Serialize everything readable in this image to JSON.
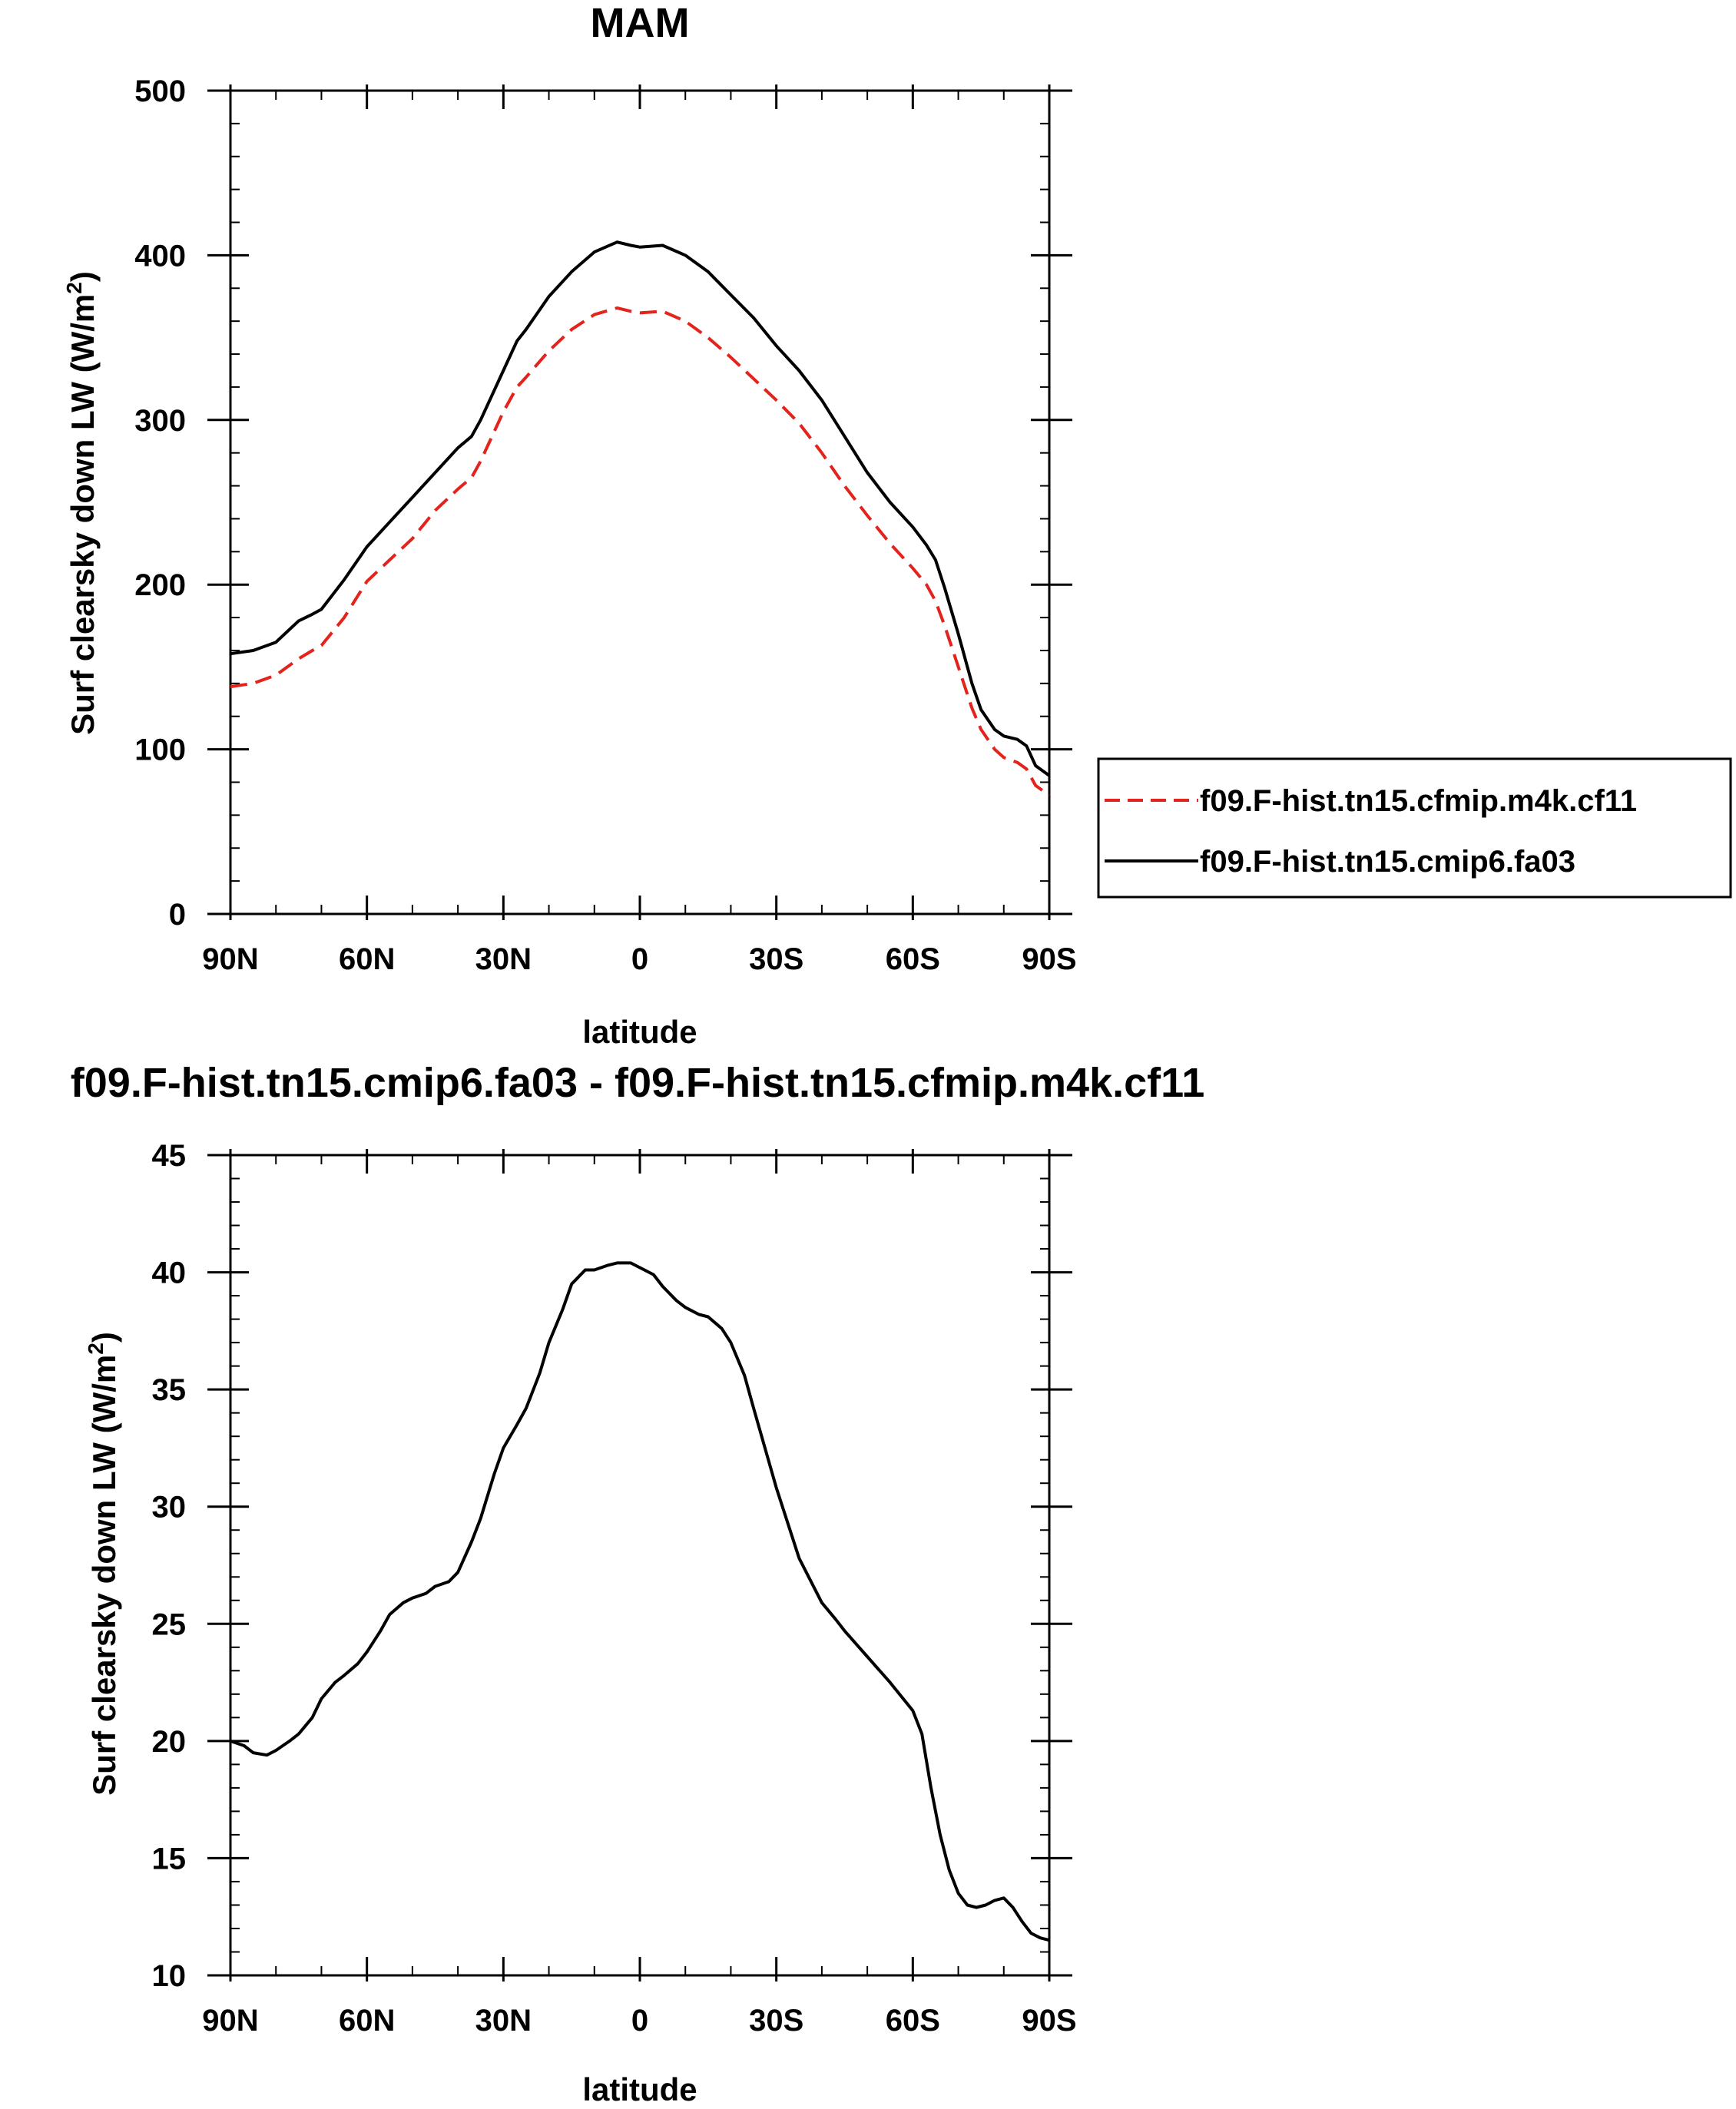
{
  "chart_data": [
    {
      "type": "line",
      "title": "MAM",
      "xlabel": "latitude",
      "ylabel_main": "Surf clearsky down LW (W/m",
      "ylabel_sup": "2",
      "ylabel_close": ")",
      "xlim": [
        90,
        -90
      ],
      "ylim": [
        0,
        500
      ],
      "x_ticks": [
        90,
        60,
        30,
        0,
        -30,
        -60,
        -90
      ],
      "x_tick_labels": [
        "90N",
        "60N",
        "30N",
        "0",
        "30S",
        "60S",
        "90S"
      ],
      "y_ticks": [
        0,
        100,
        200,
        300,
        400,
        500
      ],
      "y_tick_labels": [
        "0",
        "100",
        "200",
        "300",
        "400",
        "500"
      ],
      "legend_position": "right, outside plot",
      "x": [
        90,
        85,
        80,
        75,
        72,
        70,
        65,
        60,
        55,
        50,
        45,
        40,
        37,
        35,
        30,
        27,
        25,
        20,
        15,
        10,
        5,
        2,
        0,
        -5,
        -10,
        -15,
        -20,
        -25,
        -30,
        -35,
        -40,
        -45,
        -50,
        -55,
        -60,
        -63,
        -65,
        -67,
        -70,
        -73,
        -75,
        -78,
        -80,
        -83,
        -85,
        -87,
        -90
      ],
      "series": [
        {
          "name": "f09.F-hist.tn15.cfmip.m4k.cf11",
          "color": "#e3231c",
          "dash": true,
          "values": [
            138,
            140,
            145,
            155,
            160,
            163,
            180,
            202,
            215,
            228,
            245,
            258,
            265,
            275,
            305,
            320,
            326,
            342,
            355,
            364,
            368,
            366,
            365,
            366,
            360,
            350,
            338,
            325,
            312,
            298,
            280,
            260,
            242,
            225,
            210,
            200,
            190,
            175,
            150,
            125,
            112,
            100,
            95,
            92,
            88,
            78,
            72
          ]
        },
        {
          "name": "f09.F-hist.tn15.cmip6.fa03",
          "color": "#000000",
          "dash": false,
          "values": [
            158,
            160,
            165,
            178,
            182,
            185,
            203,
            223,
            238,
            253,
            268,
            283,
            290,
            300,
            330,
            348,
            355,
            375,
            390,
            402,
            408,
            406,
            405,
            406,
            400,
            390,
            376,
            362,
            345,
            330,
            312,
            290,
            268,
            250,
            235,
            224,
            215,
            198,
            170,
            140,
            124,
            112,
            108,
            106,
            102,
            90,
            84
          ]
        }
      ]
    },
    {
      "type": "line",
      "title": "f09.F-hist.tn15.cmip6.fa03 - f09.F-hist.tn15.cfmip.m4k.cf11",
      "xlabel": "latitude",
      "ylabel_main": "Surf clearsky down LW (W/m",
      "ylabel_sup": "2",
      "ylabel_close": ")",
      "xlim": [
        90,
        -90
      ],
      "ylim": [
        10,
        45
      ],
      "x_ticks": [
        90,
        60,
        30,
        0,
        -30,
        -60,
        -90
      ],
      "x_tick_labels": [
        "90N",
        "60N",
        "30N",
        "0",
        "30S",
        "60S",
        "90S"
      ],
      "y_ticks": [
        10,
        15,
        20,
        25,
        30,
        35,
        40,
        45
      ],
      "y_tick_labels": [
        "10",
        "15",
        "20",
        "25",
        "30",
        "35",
        "40",
        "45"
      ],
      "x": [
        90,
        87,
        85,
        82,
        80,
        77,
        75,
        72,
        70,
        67,
        65,
        62,
        60,
        57,
        55,
        52,
        50,
        47,
        45,
        42,
        40,
        37,
        35,
        32,
        30,
        27,
        25,
        22,
        20,
        17,
        15,
        12,
        10,
        7,
        5,
        2,
        0,
        -3,
        -5,
        -8,
        -10,
        -13,
        -15,
        -18,
        -20,
        -23,
        -25,
        -30,
        -35,
        -40,
        -43,
        -45,
        -50,
        -55,
        -60,
        -62,
        -64,
        -66,
        -68,
        -70,
        -72,
        -74,
        -76,
        -78,
        -80,
        -82,
        -84,
        -86,
        -88,
        -90
      ],
      "series": [
        {
          "name": "",
          "color": "#000000",
          "dash": false,
          "values": [
            20.0,
            19.8,
            19.5,
            19.4,
            19.6,
            20.0,
            20.3,
            21.0,
            21.8,
            22.5,
            22.8,
            23.3,
            23.8,
            24.7,
            25.4,
            25.9,
            26.1,
            26.3,
            26.6,
            26.8,
            27.2,
            28.5,
            29.5,
            31.4,
            32.5,
            33.5,
            34.2,
            35.7,
            37.0,
            38.4,
            39.5,
            40.1,
            40.1,
            40.3,
            40.4,
            40.4,
            40.2,
            39.9,
            39.4,
            38.8,
            38.5,
            38.2,
            38.1,
            37.6,
            37.0,
            35.6,
            34.2,
            30.8,
            27.8,
            25.9,
            25.2,
            24.7,
            23.6,
            22.5,
            21.3,
            20.3,
            18.0,
            16.0,
            14.5,
            13.5,
            13.0,
            12.9,
            13.0,
            13.2,
            13.3,
            12.9,
            12.3,
            11.8,
            11.6,
            11.5
          ]
        }
      ]
    }
  ]
}
